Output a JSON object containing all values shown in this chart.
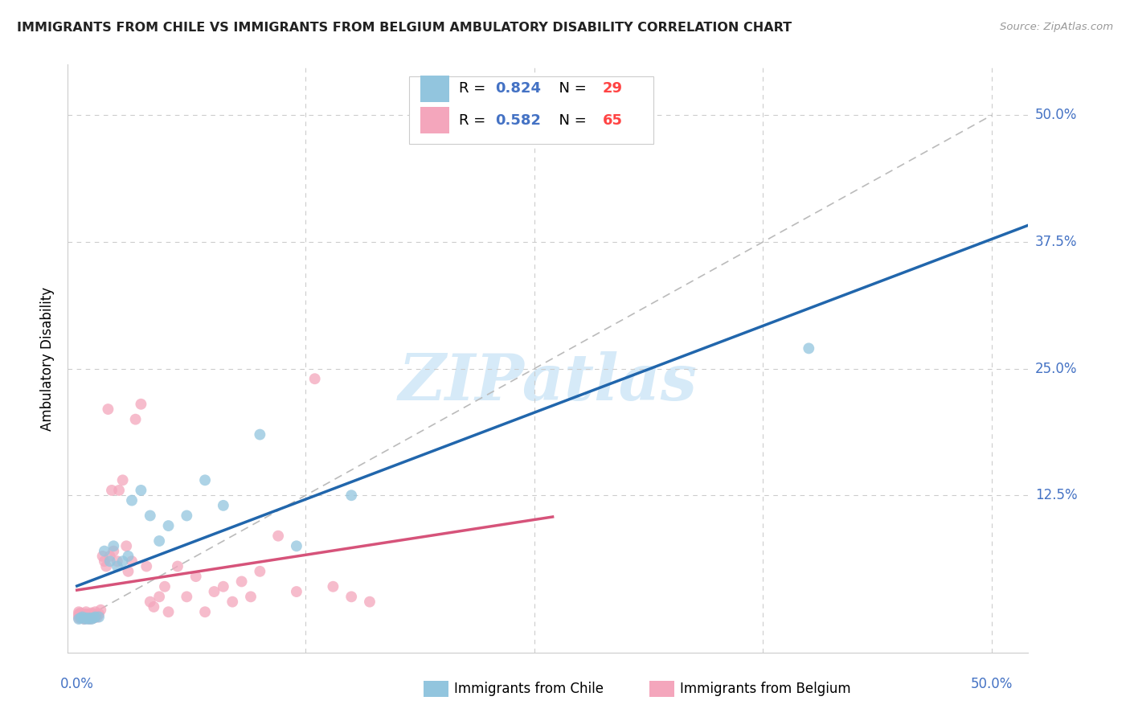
{
  "title": "IMMIGRANTS FROM CHILE VS IMMIGRANTS FROM BELGIUM AMBULATORY DISABILITY CORRELATION CHART",
  "source": "Source: ZipAtlas.com",
  "ylabel": "Ambulatory Disability",
  "legend_blue_label": "Immigrants from Chile",
  "legend_pink_label": "Immigrants from Belgium",
  "blue_color": "#92c5de",
  "pink_color": "#f4a6bc",
  "blue_line_color": "#2166ac",
  "pink_line_color": "#d6537a",
  "diagonal_color": "#bbbbbb",
  "watermark_text": "ZIPatlas",
  "watermark_color": "#d6eaf8",
  "chile_x": [
    0.001,
    0.002,
    0.003,
    0.004,
    0.005,
    0.006,
    0.007,
    0.008,
    0.009,
    0.01,
    0.012,
    0.015,
    0.018,
    0.02,
    0.022,
    0.025,
    0.028,
    0.03,
    0.035,
    0.04,
    0.045,
    0.05,
    0.06,
    0.07,
    0.08,
    0.1,
    0.12,
    0.15,
    0.4
  ],
  "chile_y": [
    0.003,
    0.004,
    0.005,
    0.003,
    0.004,
    0.003,
    0.004,
    0.003,
    0.004,
    0.005,
    0.005,
    0.07,
    0.06,
    0.075,
    0.055,
    0.06,
    0.065,
    0.12,
    0.13,
    0.105,
    0.08,
    0.095,
    0.105,
    0.14,
    0.115,
    0.185,
    0.075,
    0.125,
    0.27
  ],
  "belgium_x": [
    0.001,
    0.001,
    0.001,
    0.001,
    0.002,
    0.002,
    0.002,
    0.003,
    0.003,
    0.003,
    0.004,
    0.004,
    0.005,
    0.005,
    0.005,
    0.006,
    0.006,
    0.007,
    0.007,
    0.008,
    0.008,
    0.009,
    0.009,
    0.01,
    0.01,
    0.011,
    0.012,
    0.013,
    0.014,
    0.015,
    0.016,
    0.017,
    0.018,
    0.019,
    0.02,
    0.022,
    0.023,
    0.025,
    0.027,
    0.028,
    0.03,
    0.032,
    0.035,
    0.038,
    0.04,
    0.042,
    0.045,
    0.048,
    0.05,
    0.055,
    0.06,
    0.065,
    0.07,
    0.075,
    0.08,
    0.085,
    0.09,
    0.095,
    0.1,
    0.11,
    0.12,
    0.13,
    0.14,
    0.15,
    0.16
  ],
  "belgium_y": [
    0.004,
    0.006,
    0.008,
    0.01,
    0.005,
    0.007,
    0.009,
    0.004,
    0.006,
    0.008,
    0.003,
    0.007,
    0.005,
    0.008,
    0.01,
    0.004,
    0.007,
    0.003,
    0.006,
    0.005,
    0.009,
    0.004,
    0.008,
    0.006,
    0.01,
    0.005,
    0.008,
    0.012,
    0.065,
    0.06,
    0.055,
    0.21,
    0.065,
    0.13,
    0.07,
    0.06,
    0.13,
    0.14,
    0.075,
    0.05,
    0.06,
    0.2,
    0.215,
    0.055,
    0.02,
    0.015,
    0.025,
    0.035,
    0.01,
    0.055,
    0.025,
    0.045,
    0.01,
    0.03,
    0.035,
    0.02,
    0.04,
    0.025,
    0.05,
    0.085,
    0.03,
    0.24,
    0.035,
    0.025,
    0.02
  ],
  "xmin": -0.005,
  "xmax": 0.52,
  "ymin": -0.03,
  "ymax": 0.55,
  "title_color": "#222222",
  "source_color": "#999999",
  "axis_label_color": "#4472c4",
  "legend_text_color": "#000000",
  "legend_R_color": "#4472c4",
  "legend_N_color": "#ff4444",
  "grid_color": "#cccccc"
}
